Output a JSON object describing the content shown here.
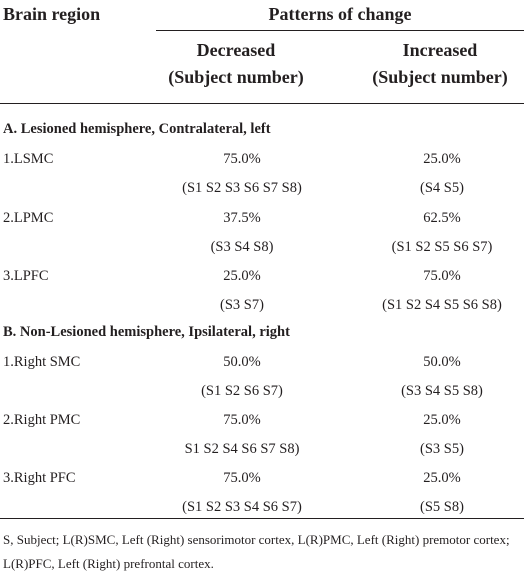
{
  "header": {
    "brain_region": "Brain region",
    "patterns": "Patterns of change",
    "decreased_line1": "Decreased",
    "decreased_line2": "(Subject number)",
    "increased_line1": "Increased",
    "increased_line2": "(Subject number)"
  },
  "sections": [
    {
      "title": "A. Lesioned hemisphere, Contralateral, left",
      "rows": [
        {
          "region": "1.LSMC",
          "dec_pct": "75.0%",
          "dec_subj": "(S1 S2 S3 S6 S7 S8)",
          "inc_pct": "25.0%",
          "inc_subj": "(S4 S5)"
        },
        {
          "region": "2.LPMC",
          "dec_pct": "37.5%",
          "dec_subj": "(S3 S4 S8)",
          "inc_pct": "62.5%",
          "inc_subj": "(S1 S2 S5 S6 S7)"
        },
        {
          "region": "3.LPFC",
          "dec_pct": "25.0%",
          "dec_subj": "(S3 S7)",
          "inc_pct": "75.0%",
          "inc_subj": "(S1 S2 S4 S5 S6 S8)"
        }
      ]
    },
    {
      "title": "B. Non-Lesioned hemisphere, Ipsilateral, right",
      "rows": [
        {
          "region": "1.Right SMC",
          "dec_pct": "50.0%",
          "dec_subj": "(S1 S2 S6 S7)",
          "inc_pct": "50.0%",
          "inc_subj": "(S3 S4 S5 S8)"
        },
        {
          "region": "2.Right PMC",
          "dec_pct": "75.0%",
          "dec_subj": "S1 S2 S4 S6 S7 S8)",
          "inc_pct": "25.0%",
          "inc_subj": "(S3 S5)"
        },
        {
          "region": "3.Right PFC",
          "dec_pct": "75.0%",
          "dec_subj": "(S1 S2 S3 S4 S6 S7)",
          "inc_pct": "25.0%",
          "inc_subj": "(S5 S8)"
        }
      ]
    }
  ],
  "footnote": "S, Subject; L(R)SMC, Left (Right) sensorimotor cortex, L(R)PMC, Left (Right) premotor cortex; L(R)PFC, Left (Right) prefrontal cortex."
}
